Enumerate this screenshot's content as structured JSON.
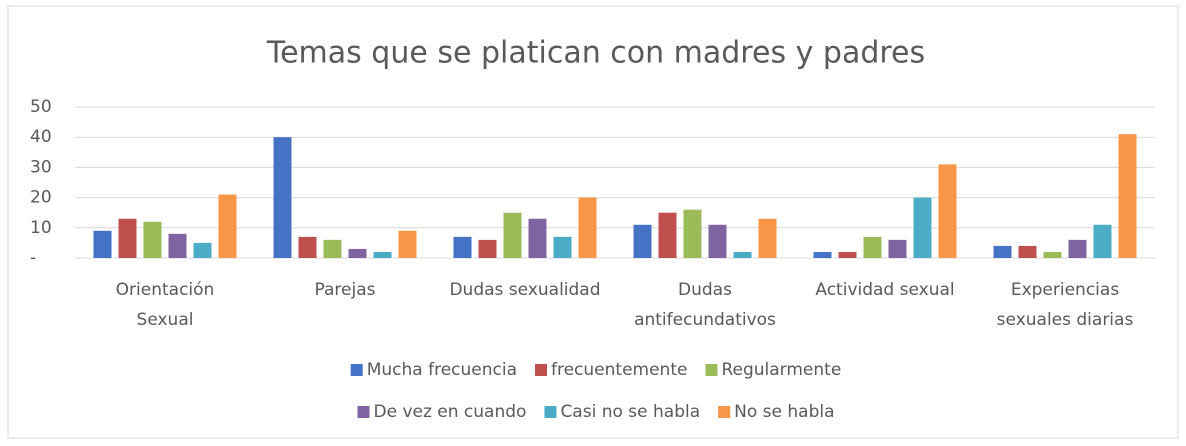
{
  "chart_data": {
    "type": "bar",
    "title": "Temas que se platican con madres y padres",
    "categories": [
      "Orientación\nSexual",
      "Parejas",
      "Dudas sexualidad",
      "Dudas\nantifecundativos",
      "Actividad sexual",
      "Experiencias\nsexuales diarias"
    ],
    "series": [
      {
        "name": "Mucha frecuencia",
        "color": "#4472c4",
        "values": [
          9,
          40,
          7,
          11,
          2,
          4
        ]
      },
      {
        "name": "frecuentemente",
        "color": "#c0504d",
        "values": [
          13,
          7,
          6,
          15,
          2,
          4
        ]
      },
      {
        "name": "Regularmente",
        "color": "#9bbb59",
        "values": [
          12,
          6,
          15,
          16,
          7,
          2
        ]
      },
      {
        "name": "De vez en cuando",
        "color": "#8064a2",
        "values": [
          8,
          3,
          13,
          11,
          6,
          6
        ]
      },
      {
        "name": "Casi no se habla",
        "color": "#4bacc6",
        "values": [
          5,
          2,
          7,
          2,
          20,
          11
        ]
      },
      {
        "name": "No se habla",
        "color": "#f79646",
        "values": [
          21,
          9,
          20,
          13,
          31,
          41
        ]
      }
    ],
    "ylim": [
      0,
      50
    ],
    "yticks": [
      {
        "value": 0,
        "label": "-"
      },
      10,
      20,
      30,
      40,
      50
    ],
    "grid": true,
    "legend": "bottom"
  }
}
